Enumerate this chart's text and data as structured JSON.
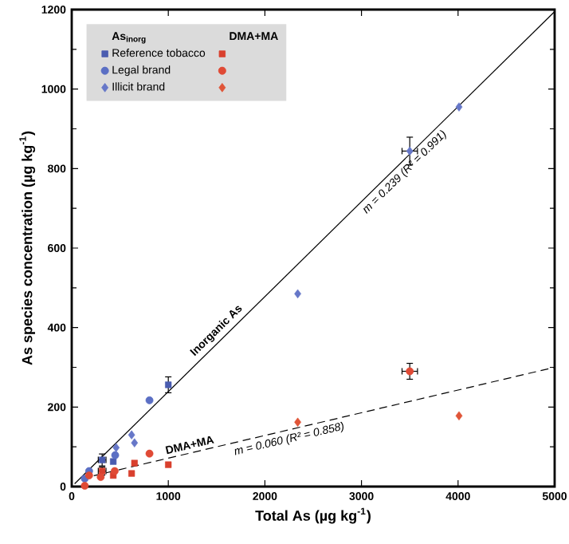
{
  "chart_data": {
    "type": "scatter",
    "xlabel": "Total As (µg kg$^{-1}$)",
    "ylabel": "As species concentration (µg kg$^{-1}$)",
    "legend_title": "As$_{inorg}$",
    "legend": "top left",
    "xlim": [
      0,
      5000
    ],
    "ylim": [
      0,
      1200
    ],
    "xticks": [
      0,
      1000,
      2000,
      3000,
      4000,
      5000
    ],
    "yticks": [
      0,
      200,
      400,
      600,
      800,
      1000,
      1200
    ],
    "series": [
      {
        "name": "Reference tobacco",
        "marker": "square",
        "color": "#4a5cb0",
        "x": [
          1000,
          315,
          430
        ],
        "values": [
          256,
          67,
          63
        ],
        "errors": [
          20,
          15,
          null
        ],
        "xerrors": [
          null,
          40,
          null
        ]
      },
      {
        "name": "Legal brand",
        "marker": "circle",
        "color": "#5b6fc4",
        "x": [
          805,
          450,
          180,
          135
        ],
        "values": [
          217,
          79,
          39,
          20
        ]
      },
      {
        "name": "Illicit brand",
        "marker": "diamond",
        "color": "#6677c8",
        "x": [
          4010,
          3500,
          2340,
          620,
          650,
          460
        ],
        "values": [
          955,
          844,
          485,
          130,
          110,
          98
        ],
        "errors": [
          null,
          35,
          null,
          null,
          null,
          null
        ],
        "xerrors": [
          null,
          80,
          null,
          null,
          null,
          null
        ]
      },
      {
        "marker": "square",
        "color": "#d9402e",
        "x": [
          1000,
          650,
          620,
          460,
          430,
          315
        ],
        "values": [
          55,
          59,
          33,
          null,
          28,
          39
        ],
        "errors": [
          null,
          null,
          null,
          null,
          null,
          10
        ],
        "xerrors": [
          null,
          null,
          null,
          null,
          null,
          40
        ]
      },
      {
        "marker": "circle",
        "color": "#e04a35",
        "x": [
          3500,
          805,
          445,
          300,
          135,
          180
        ],
        "values": [
          290,
          83,
          39,
          24,
          2,
          28
        ],
        "errors": [
          20,
          null,
          null,
          null,
          null,
          null
        ],
        "xerrors": [
          80,
          null,
          null,
          null,
          null,
          null
        ]
      },
      {
        "marker": "diamond",
        "color": "#e05538",
        "x": [
          2340,
          4010
        ],
        "values": [
          162,
          178
        ]
      },
      {
        "type": "line",
        "line_style": "solid",
        "color": "#000000",
        "x": [
          30,
          5000
        ],
        "values": [
          7,
          1195
        ]
      },
      {
        "type": "line",
        "line_style": "dashed",
        "color": "#000000",
        "x": [
          100,
          5000
        ],
        "values": [
          20,
          300
        ]
      }
    ],
    "annotations": [
      "DMA+MA",
      {
        "text": "Inorganic As",
        "x": 1570,
        "y": 375
      },
      {
        "text": "m = 0.239 (R² = 0.991)",
        "x": 3380,
        "y": 808
      },
      {
        "text": "DMA+MA",
        "x": 1240,
        "y": 85
      },
      {
        "text": "m = 0.060 (R² = 0.858)",
        "x": 2230,
        "y": 142
      }
    ]
  }
}
